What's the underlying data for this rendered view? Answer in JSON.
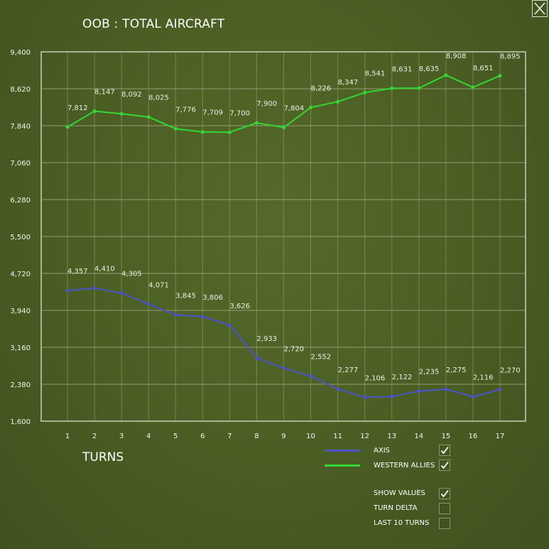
{
  "window": {
    "title": "OOB : TOTAL AIRCRAFT",
    "xaxis_title": "TURNS"
  },
  "close_button": {
    "icon": "close-icon"
  },
  "legend": [
    {
      "label": "AXIS",
      "color": "#4a54c8",
      "checked": true
    },
    {
      "label": "WESTERN ALLIES",
      "color": "#33d633",
      "checked": true
    }
  ],
  "options": [
    {
      "label": "SHOW VALUES",
      "checked": true
    },
    {
      "label": "TURN DELTA",
      "checked": false
    },
    {
      "label": "LAST 10 TURNS",
      "checked": false
    }
  ],
  "chart_data": {
    "type": "line",
    "title": "OOB : TOTAL AIRCRAFT",
    "xlabel": "TURNS",
    "ylabel": "",
    "x": [
      1,
      2,
      3,
      4,
      5,
      6,
      7,
      8,
      9,
      10,
      11,
      12,
      13,
      14,
      15,
      16,
      17
    ],
    "ylim": [
      1600,
      9400
    ],
    "yticks": [
      "1,600",
      "2,380",
      "3,160",
      "3,940",
      "4,720",
      "5,500",
      "6,280",
      "7,060",
      "7,840",
      "8,620",
      "9,400"
    ],
    "grid": true,
    "legend_position": "bottom-right",
    "series": [
      {
        "name": "AXIS",
        "color": "#4a54c8",
        "values": [
          4357,
          4410,
          4305,
          4071,
          3845,
          3806,
          3626,
          2933,
          2720,
          2552,
          2277,
          2106,
          2122,
          2235,
          2275,
          2116,
          2270
        ],
        "labels": [
          "4,357",
          "4,410",
          "4,305",
          "4,071",
          "3,845",
          "3,806",
          "3,626",
          "2,933",
          "2,720",
          "2,552",
          "2,277",
          "2,106",
          "2,122",
          "2,235",
          "2,275",
          "2,116",
          "2,270"
        ]
      },
      {
        "name": "WESTERN ALLIES",
        "color": "#33d633",
        "values": [
          7812,
          8147,
          8092,
          8025,
          7776,
          7709,
          7700,
          7900,
          7804,
          8226,
          8347,
          8541,
          8631,
          8635,
          8908,
          8651,
          8895
        ],
        "labels": [
          "7,812",
          "8,147",
          "8,092",
          "8,025",
          "7,776",
          "7,709",
          "7,700",
          "7,900",
          "7,804",
          "8,226",
          "8,347",
          "8,541",
          "8,631",
          "8,635",
          "8,908",
          "8,651",
          "8,895"
        ]
      }
    ]
  }
}
